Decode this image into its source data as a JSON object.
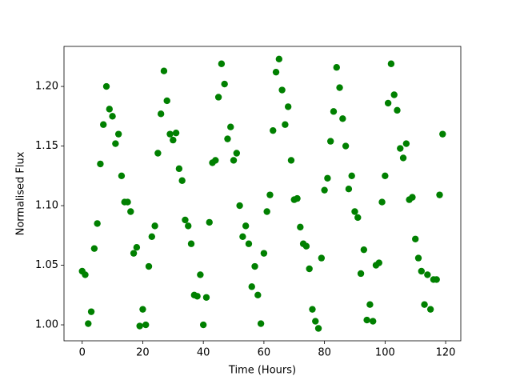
{
  "chart_data": {
    "type": "scatter",
    "xlabel": "Time (Hours)",
    "ylabel": "Normalised Flux",
    "x": [
      0,
      1,
      2,
      3,
      4,
      5,
      6,
      7,
      8,
      9,
      10,
      11,
      12,
      13,
      14,
      15,
      16,
      17,
      18,
      19,
      20,
      21,
      22,
      23,
      24,
      25,
      26,
      27,
      28,
      29,
      30,
      31,
      32,
      33,
      34,
      35,
      36,
      37,
      38,
      39,
      40,
      41,
      42,
      43,
      44,
      45,
      46,
      47,
      48,
      49,
      50,
      51,
      52,
      53,
      54,
      55,
      56,
      57,
      58,
      59,
      60,
      61,
      62,
      63,
      64,
      65,
      66,
      67,
      68,
      69,
      70,
      71,
      72,
      73,
      74,
      75,
      76,
      77,
      78,
      79,
      80,
      81,
      82,
      83,
      84,
      85,
      86,
      87,
      88,
      89,
      90,
      91,
      92,
      93,
      94,
      95,
      96,
      97,
      98,
      99,
      100,
      101,
      102,
      103,
      104,
      105,
      106,
      107,
      108,
      109,
      110,
      111,
      112,
      113,
      114,
      115,
      116,
      117,
      118,
      119
    ],
    "values": [
      1.045,
      1.042,
      1.001,
      1.011,
      1.064,
      1.085,
      1.135,
      1.168,
      1.2,
      1.181,
      1.175,
      1.152,
      1.16,
      1.125,
      1.103,
      1.103,
      1.095,
      1.06,
      1.065,
      0.999,
      1.013,
      1.0,
      1.049,
      1.074,
      1.083,
      1.144,
      1.177,
      1.213,
      1.188,
      1.16,
      1.155,
      1.161,
      1.131,
      1.121,
      1.088,
      1.083,
      1.068,
      1.025,
      1.024,
      1.042,
      1.0,
      1.023,
      1.086,
      1.136,
      1.138,
      1.191,
      1.219,
      1.202,
      1.156,
      1.166,
      1.138,
      1.144,
      1.1,
      1.074,
      1.083,
      1.068,
      1.032,
      1.049,
      1.025,
      1.001,
      1.06,
      1.095,
      1.109,
      1.163,
      1.212,
      1.223,
      1.197,
      1.168,
      1.183,
      1.138,
      1.105,
      1.106,
      1.082,
      1.068,
      1.066,
      1.047,
      1.013,
      1.003,
      0.997,
      1.056,
      1.113,
      1.123,
      1.154,
      1.179,
      1.216,
      1.199,
      1.173,
      1.15,
      1.114,
      1.125,
      1.095,
      1.09,
      1.043,
      1.063,
      1.004,
      1.017,
      1.003,
      1.05,
      1.052,
      1.103,
      1.125,
      1.186,
      1.219,
      1.193,
      1.18,
      1.148,
      1.14,
      1.152,
      1.105,
      1.107,
      1.072,
      1.056,
      1.045,
      1.017,
      1.042,
      1.013,
      1.038,
      1.038,
      1.109,
      1.16
    ],
    "color": "green",
    "xlim": [
      -6,
      125
    ],
    "ylim": [
      0.9866,
      1.2336
    ],
    "xticks": [
      0,
      20,
      40,
      60,
      80,
      100,
      120
    ],
    "yticks": [
      {
        "value": 1.0,
        "label": "1.00"
      },
      1.05,
      {
        "value": 1.1,
        "label": "1.10"
      },
      1.15,
      {
        "value": 1.2,
        "label": "1.20"
      }
    ]
  }
}
